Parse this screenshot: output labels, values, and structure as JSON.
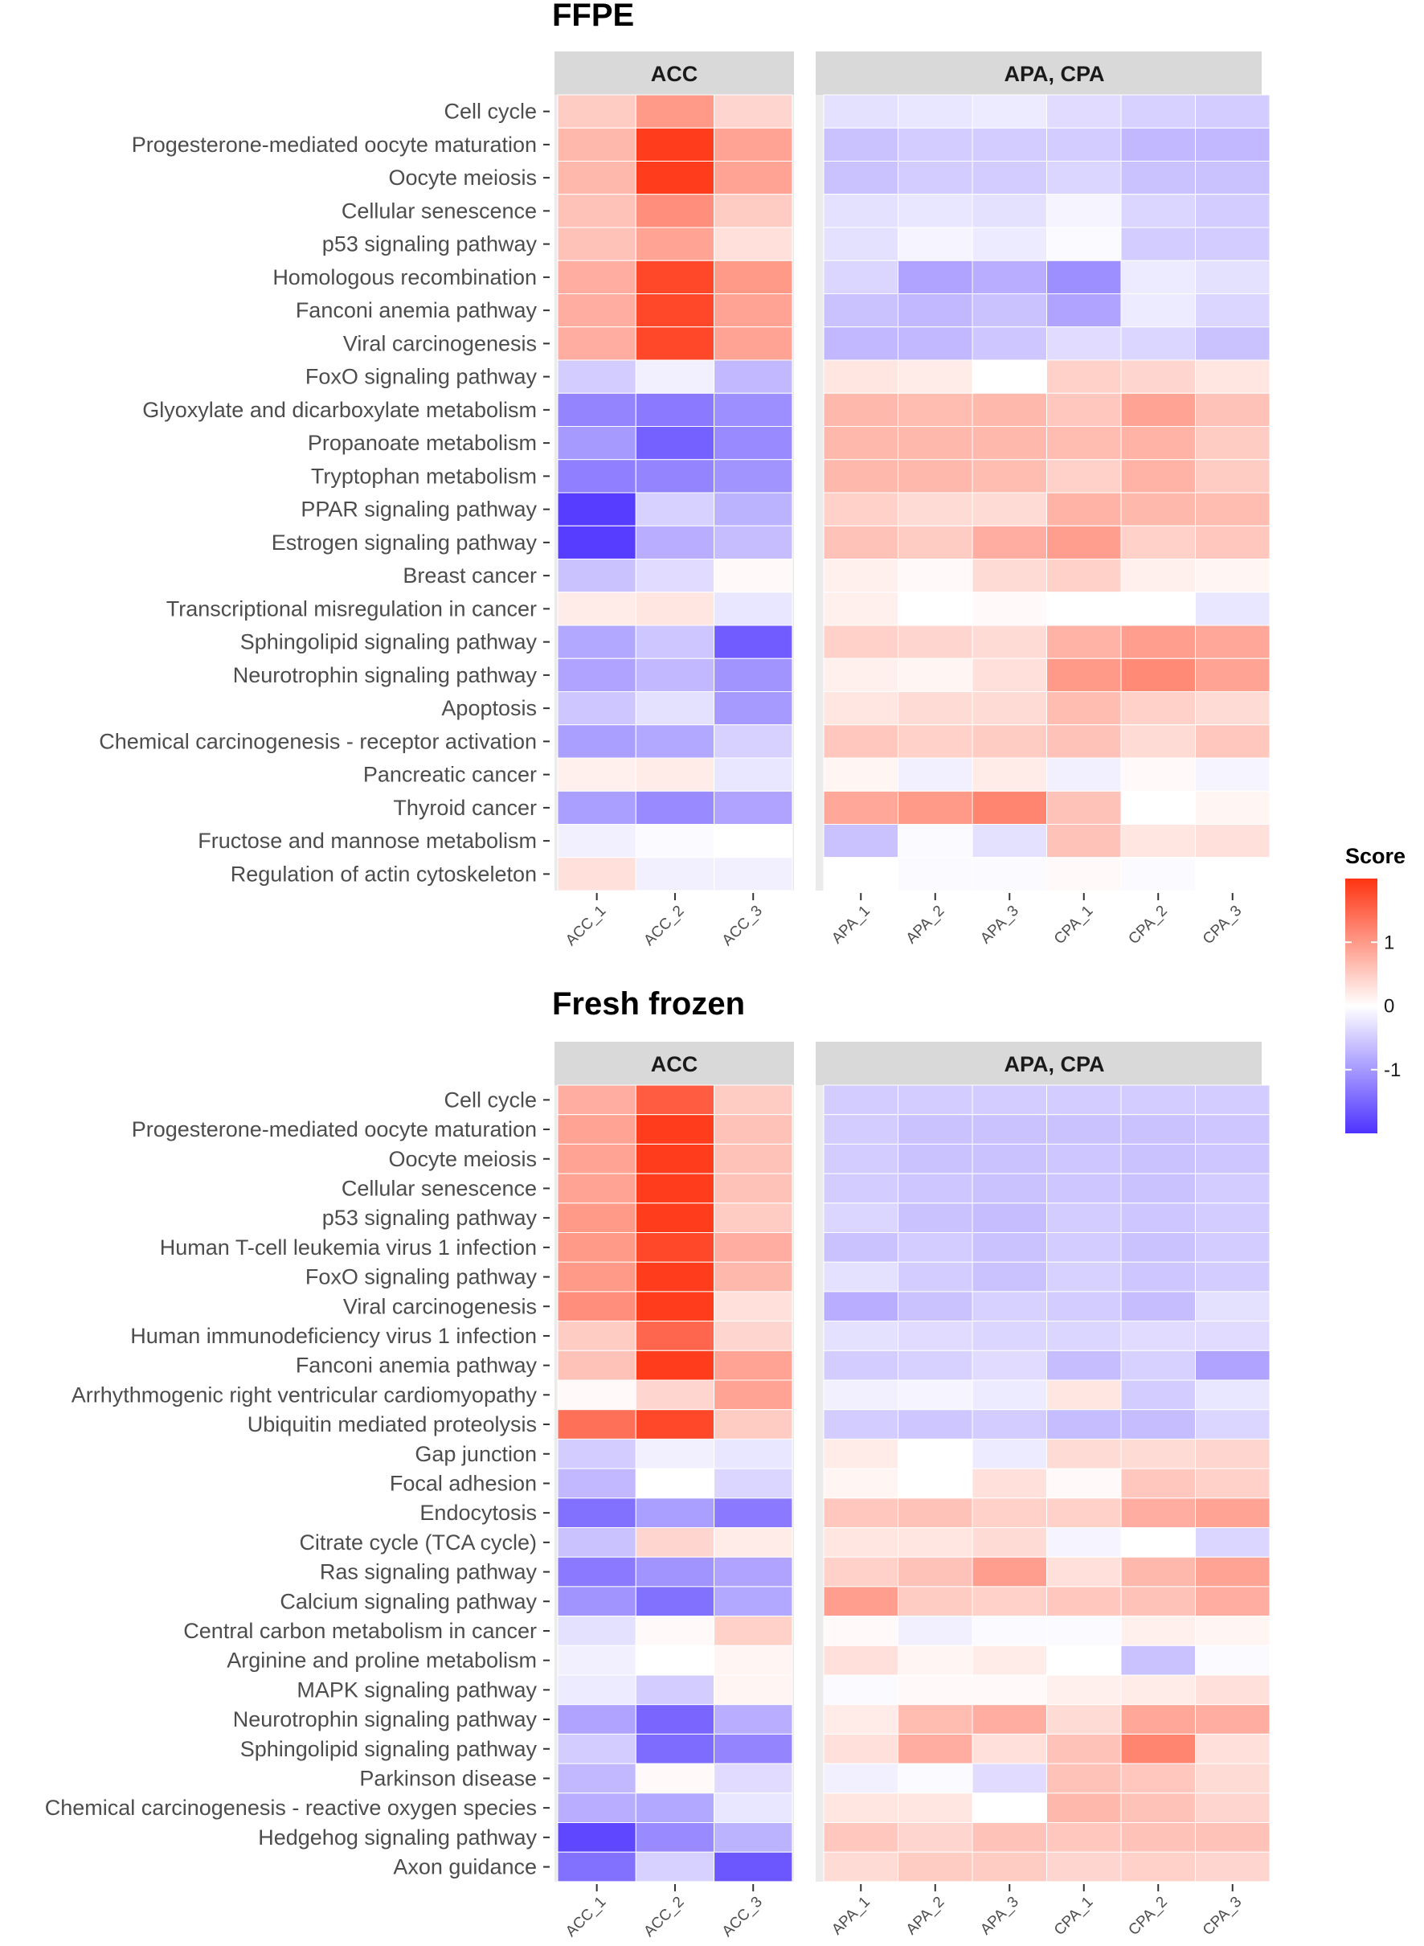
{
  "chart_data": [
    {
      "type": "heatmap",
      "title": "FFPE",
      "panels": [
        {
          "label": "ACC",
          "columns": [
            "ACC_1",
            "ACC_2",
            "ACC_3"
          ]
        },
        {
          "label": "APA, CPA",
          "columns": [
            "APA_1",
            "APA_2",
            "APA_3",
            "CPA_1",
            "CPA_2",
            "CPA_3"
          ]
        }
      ],
      "rows": [
        "Cell cycle",
        "Progesterone-mediated oocyte maturation",
        "Oocyte meiosis",
        "Cellular senescence",
        "p53 signaling pathway",
        "Homologous recombination",
        "Fanconi anemia pathway",
        "Viral carcinogenesis",
        "FoxO signaling pathway",
        "Glyoxylate and dicarboxylate metabolism",
        "Propanoate metabolism",
        "Tryptophan metabolism",
        "PPAR signaling pathway",
        "Estrogen signaling pathway",
        "Breast cancer",
        "Transcriptional misregulation in cancer",
        "Sphingolipid signaling pathway",
        "Neurotrophin signaling pathway",
        "Apoptosis",
        "Chemical carcinogenesis - receptor activation",
        "Pancreatic cancer",
        "Thyroid cancer",
        "Fructose and mannose metabolism",
        "Regulation of actin cytoskeleton"
      ],
      "values": [
        [
          0.5,
          1.0,
          0.4,
          -0.3,
          -0.25,
          -0.2,
          -0.35,
          -0.45,
          -0.5
        ],
        [
          0.7,
          1.9,
          0.9,
          -0.6,
          -0.5,
          -0.5,
          -0.5,
          -0.7,
          -0.7
        ],
        [
          0.7,
          1.9,
          0.9,
          -0.6,
          -0.5,
          -0.5,
          -0.4,
          -0.6,
          -0.6
        ],
        [
          0.6,
          1.1,
          0.5,
          -0.3,
          -0.25,
          -0.3,
          -0.1,
          -0.4,
          -0.5
        ],
        [
          0.6,
          0.9,
          0.3,
          -0.3,
          -0.1,
          -0.2,
          -0.05,
          -0.5,
          -0.5
        ],
        [
          0.8,
          1.8,
          1.0,
          -0.4,
          -0.9,
          -0.8,
          -1.1,
          -0.2,
          -0.3
        ],
        [
          0.8,
          1.8,
          0.9,
          -0.6,
          -0.7,
          -0.6,
          -0.9,
          -0.2,
          -0.4
        ],
        [
          0.8,
          1.8,
          0.9,
          -0.7,
          -0.7,
          -0.55,
          -0.35,
          -0.4,
          -0.6
        ],
        [
          -0.5,
          -0.15,
          -0.7,
          0.25,
          0.2,
          0.0,
          0.45,
          0.4,
          0.25
        ],
        [
          -1.2,
          -1.3,
          -1.1,
          0.7,
          0.65,
          0.7,
          0.55,
          0.9,
          0.6
        ],
        [
          -1.0,
          -1.55,
          -1.15,
          0.7,
          0.7,
          0.7,
          0.65,
          0.75,
          0.5
        ],
        [
          -1.25,
          -1.2,
          -1.05,
          0.7,
          0.7,
          0.65,
          0.45,
          0.75,
          0.5
        ],
        [
          -1.9,
          -0.45,
          -0.75,
          0.45,
          0.35,
          0.35,
          0.75,
          0.7,
          0.65
        ],
        [
          -1.9,
          -0.8,
          -0.65,
          0.6,
          0.5,
          0.8,
          0.95,
          0.45,
          0.55
        ],
        [
          -0.6,
          -0.35,
          0.05,
          0.15,
          0.05,
          0.35,
          0.45,
          0.15,
          0.1
        ],
        [
          0.2,
          0.25,
          -0.25,
          0.15,
          0.0,
          0.05,
          0.0,
          0.0,
          -0.25
        ],
        [
          -0.85,
          -0.55,
          -1.6,
          0.45,
          0.4,
          0.35,
          0.75,
          0.95,
          0.85
        ],
        [
          -0.9,
          -0.7,
          -1.05,
          0.15,
          0.1,
          0.3,
          1.0,
          1.15,
          0.9
        ],
        [
          -0.55,
          -0.3,
          -1.0,
          0.25,
          0.35,
          0.35,
          0.65,
          0.45,
          0.35
        ],
        [
          -0.95,
          -0.85,
          -0.45,
          0.55,
          0.45,
          0.5,
          0.6,
          0.35,
          0.55
        ],
        [
          0.15,
          0.2,
          -0.25,
          0.1,
          -0.15,
          0.2,
          -0.15,
          0.05,
          -0.1
        ],
        [
          -0.95,
          -1.15,
          -0.9,
          0.85,
          1.0,
          1.2,
          0.6,
          0.0,
          0.1
        ],
        [
          -0.15,
          -0.05,
          0.0,
          -0.6,
          -0.05,
          -0.3,
          0.6,
          0.25,
          0.3
        ],
        [
          0.3,
          -0.15,
          -0.15,
          0.0,
          -0.05,
          -0.05,
          0.05,
          -0.05,
          0.0
        ]
      ],
      "color_scale": {
        "low": "#4d33ff",
        "mid": "#ffffff",
        "high": "#ff3311",
        "limits": [
          -2,
          2
        ]
      }
    },
    {
      "type": "heatmap",
      "title": "Fresh frozen",
      "panels": [
        {
          "label": "ACC",
          "columns": [
            "ACC_1",
            "ACC_2",
            "ACC_3"
          ]
        },
        {
          "label": "APA, CPA",
          "columns": [
            "APA_1",
            "APA_2",
            "APA_3",
            "CPA_1",
            "CPA_2",
            "CPA_3"
          ]
        }
      ],
      "rows": [
        "Cell cycle",
        "Progesterone-mediated oocyte maturation",
        "Oocyte meiosis",
        "Cellular senescence",
        "p53 signaling pathway",
        "Human T-cell leukemia virus 1 infection",
        "FoxO signaling pathway",
        "Viral carcinogenesis",
        "Human immunodeficiency virus 1 infection",
        "Fanconi anemia pathway",
        "Arrhythmogenic right ventricular cardiomyopathy",
        "Ubiquitin mediated proteolysis",
        "Gap junction",
        "Focal adhesion",
        "Endocytosis",
        "Citrate cycle (TCA cycle)",
        "Ras signaling pathway",
        "Calcium signaling pathway",
        "Central carbon metabolism in cancer",
        "Arginine and proline metabolism",
        "MAPK signaling pathway",
        "Neurotrophin signaling pathway",
        "Sphingolipid signaling pathway",
        "Parkinson disease",
        "Chemical carcinogenesis - reactive oxygen species",
        "Hedgehog signaling pathway",
        "Axon guidance"
      ],
      "values": [
        [
          0.8,
          1.6,
          0.5,
          -0.5,
          -0.5,
          -0.5,
          -0.5,
          -0.5,
          -0.5
        ],
        [
          0.9,
          1.9,
          0.6,
          -0.5,
          -0.6,
          -0.6,
          -0.6,
          -0.6,
          -0.55
        ],
        [
          0.9,
          1.9,
          0.6,
          -0.5,
          -0.6,
          -0.6,
          -0.55,
          -0.6,
          -0.55
        ],
        [
          0.9,
          1.9,
          0.6,
          -0.5,
          -0.55,
          -0.6,
          -0.55,
          -0.6,
          -0.5
        ],
        [
          1.0,
          1.9,
          0.5,
          -0.4,
          -0.6,
          -0.65,
          -0.5,
          -0.55,
          -0.5
        ],
        [
          1.0,
          1.8,
          0.8,
          -0.6,
          -0.5,
          -0.6,
          -0.5,
          -0.6,
          -0.5
        ],
        [
          1.0,
          1.9,
          0.7,
          -0.3,
          -0.5,
          -0.6,
          -0.45,
          -0.55,
          -0.5
        ],
        [
          1.1,
          1.9,
          0.3,
          -0.8,
          -0.6,
          -0.45,
          -0.5,
          -0.65,
          -0.3
        ],
        [
          0.5,
          1.5,
          0.4,
          -0.3,
          -0.35,
          -0.4,
          -0.4,
          -0.35,
          -0.35
        ],
        [
          0.6,
          1.9,
          0.9,
          -0.5,
          -0.45,
          -0.35,
          -0.65,
          -0.45,
          -0.9
        ],
        [
          0.05,
          0.4,
          0.9,
          -0.15,
          -0.1,
          -0.2,
          0.25,
          -0.5,
          -0.25
        ],
        [
          1.4,
          1.8,
          0.5,
          -0.5,
          -0.55,
          -0.5,
          -0.65,
          -0.65,
          -0.4
        ],
        [
          -0.5,
          -0.15,
          -0.25,
          0.2,
          0.0,
          -0.2,
          0.35,
          0.35,
          0.4
        ],
        [
          -0.7,
          0.0,
          -0.4,
          0.1,
          0.0,
          0.3,
          0.05,
          0.55,
          0.45
        ],
        [
          -1.4,
          -0.95,
          -1.3,
          0.55,
          0.6,
          0.45,
          0.45,
          0.8,
          0.9
        ],
        [
          -0.6,
          0.4,
          0.2,
          0.25,
          0.25,
          0.35,
          -0.1,
          0.0,
          -0.4
        ],
        [
          -1.3,
          -1.05,
          -0.9,
          0.45,
          0.6,
          0.95,
          0.3,
          0.7,
          0.9
        ],
        [
          -1.05,
          -1.4,
          -0.85,
          0.95,
          0.5,
          0.45,
          0.55,
          0.6,
          0.8
        ],
        [
          -0.3,
          0.05,
          0.45,
          0.05,
          -0.15,
          -0.05,
          -0.05,
          0.15,
          0.1
        ],
        [
          -0.15,
          0.0,
          0.1,
          0.3,
          0.1,
          0.2,
          0.0,
          -0.6,
          -0.05
        ],
        [
          -0.2,
          -0.5,
          0.1,
          -0.05,
          0.05,
          0.05,
          0.15,
          0.2,
          0.3
        ],
        [
          -0.9,
          -1.5,
          -0.8,
          0.2,
          0.65,
          0.8,
          0.35,
          0.85,
          0.8
        ],
        [
          -0.5,
          -1.45,
          -1.2,
          0.3,
          0.8,
          0.3,
          0.6,
          1.2,
          0.3
        ],
        [
          -0.7,
          0.05,
          -0.35,
          -0.15,
          -0.05,
          -0.35,
          0.6,
          0.55,
          0.35
        ],
        [
          -0.8,
          -0.85,
          -0.25,
          0.25,
          0.25,
          0.0,
          0.7,
          0.6,
          0.4
        ],
        [
          -1.8,
          -1.15,
          -0.75,
          0.55,
          0.4,
          0.6,
          0.55,
          0.6,
          0.6
        ],
        [
          -1.4,
          -0.45,
          -1.65,
          0.35,
          0.5,
          0.5,
          0.4,
          0.45,
          0.4
        ]
      ],
      "color_scale": {
        "low": "#4d33ff",
        "mid": "#ffffff",
        "high": "#ff3311",
        "limits": [
          -2,
          2
        ]
      }
    }
  ],
  "legend": {
    "title": "Score",
    "ticks": [
      {
        "value": 1,
        "label": "1"
      },
      {
        "value": 0,
        "label": "0"
      },
      {
        "value": -1,
        "label": "-1"
      }
    ]
  }
}
